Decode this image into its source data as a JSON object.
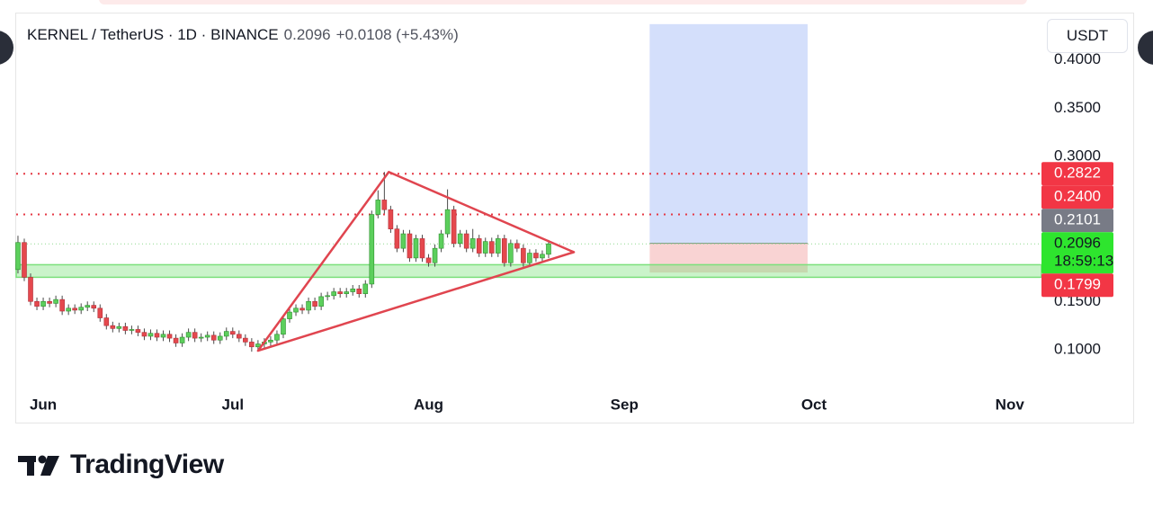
{
  "header": {
    "symbol": "KERNEL / TetherUS · 1D · BINANCE",
    "last": "0.2096",
    "change": "+0.0108 (+5.43%)"
  },
  "currency": "USDT",
  "brand": "TradingView",
  "chart_data": {
    "type": "candlestick",
    "xlim": [
      -0.28,
      162.02
    ],
    "xticks": [
      {
        "value": 4,
        "label": "Jun"
      },
      {
        "value": 34,
        "label": "Jul"
      },
      {
        "value": 65,
        "label": "Aug"
      },
      {
        "value": 96,
        "label": "Sep"
      },
      {
        "value": 126,
        "label": "Oct"
      },
      {
        "value": 157,
        "label": "Nov"
      }
    ],
    "ylim": [
      0.0572,
      0.448
    ],
    "yticks": [
      {
        "value": 0.1,
        "label": "0.1000"
      },
      {
        "value": 0.15,
        "label": "0.1500"
      },
      {
        "value": 0.3,
        "label": "0.3000"
      },
      {
        "value": 0.35,
        "label": "0.3500"
      },
      {
        "value": 0.4,
        "label": "0.4000"
      }
    ],
    "up_color": "#5ccf5c",
    "down_color": "#e5484d",
    "wick_color": "#4a4a4a",
    "candles": {
      "open": [
        0.183,
        0.211,
        0.175,
        0.15,
        0.145,
        0.15,
        0.148,
        0.152,
        0.14,
        0.143,
        0.141,
        0.144,
        0.146,
        0.143,
        0.133,
        0.125,
        0.122,
        0.124,
        0.12,
        0.121,
        0.118,
        0.114,
        0.117,
        0.113,
        0.116,
        0.112,
        0.107,
        0.113,
        0.118,
        0.112,
        0.113,
        0.115,
        0.11,
        0.114,
        0.119,
        0.116,
        0.112,
        0.108,
        0.103,
        0.106,
        0.108,
        0.11,
        0.116,
        0.132,
        0.139,
        0.143,
        0.141,
        0.15,
        0.145,
        0.155,
        0.156,
        0.16,
        0.158,
        0.16,
        0.163,
        0.158,
        0.168,
        0.24,
        0.255,
        0.245,
        0.225,
        0.205,
        0.22,
        0.195,
        0.215,
        0.195,
        0.19,
        0.205,
        0.22,
        0.245,
        0.21,
        0.22,
        0.205,
        0.215,
        0.2,
        0.212,
        0.2,
        0.215,
        0.19,
        0.21,
        0.205,
        0.19,
        0.2,
        0.195,
        0.1988
      ],
      "high": [
        0.218,
        0.215,
        0.179,
        0.154,
        0.154,
        0.154,
        0.156,
        0.156,
        0.147,
        0.147,
        0.148,
        0.15,
        0.15,
        0.147,
        0.137,
        0.129,
        0.128,
        0.128,
        0.125,
        0.125,
        0.122,
        0.121,
        0.121,
        0.12,
        0.12,
        0.116,
        0.117,
        0.122,
        0.122,
        0.117,
        0.119,
        0.119,
        0.118,
        0.123,
        0.123,
        0.12,
        0.116,
        0.112,
        0.11,
        0.112,
        0.114,
        0.12,
        0.136,
        0.143,
        0.147,
        0.147,
        0.154,
        0.154,
        0.159,
        0.16,
        0.164,
        0.164,
        0.164,
        0.167,
        0.167,
        0.172,
        0.244,
        0.265,
        0.284,
        0.249,
        0.229,
        0.224,
        0.224,
        0.219,
        0.219,
        0.199,
        0.209,
        0.224,
        0.266,
        0.249,
        0.224,
        0.224,
        0.225,
        0.219,
        0.216,
        0.216,
        0.219,
        0.219,
        0.214,
        0.214,
        0.209,
        0.204,
        0.204,
        0.2028,
        0.2136
      ],
      "low": [
        0.179,
        0.171,
        0.146,
        0.141,
        0.141,
        0.144,
        0.144,
        0.136,
        0.136,
        0.137,
        0.137,
        0.14,
        0.139,
        0.129,
        0.121,
        0.118,
        0.118,
        0.116,
        0.116,
        0.114,
        0.11,
        0.11,
        0.109,
        0.109,
        0.108,
        0.103,
        0.103,
        0.109,
        0.108,
        0.108,
        0.109,
        0.106,
        0.106,
        0.11,
        0.112,
        0.108,
        0.104,
        0.098,
        0.099,
        0.102,
        0.104,
        0.106,
        0.112,
        0.128,
        0.135,
        0.137,
        0.137,
        0.141,
        0.141,
        0.151,
        0.152,
        0.154,
        0.154,
        0.156,
        0.154,
        0.154,
        0.164,
        0.236,
        0.241,
        0.221,
        0.201,
        0.201,
        0.191,
        0.191,
        0.191,
        0.186,
        0.186,
        0.201,
        0.216,
        0.206,
        0.206,
        0.201,
        0.201,
        0.196,
        0.196,
        0.196,
        0.196,
        0.186,
        0.186,
        0.201,
        0.186,
        0.186,
        0.191,
        0.191,
        0.1948
      ],
      "close": [
        0.211,
        0.175,
        0.15,
        0.145,
        0.15,
        0.148,
        0.152,
        0.14,
        0.143,
        0.141,
        0.144,
        0.146,
        0.143,
        0.133,
        0.125,
        0.122,
        0.124,
        0.12,
        0.121,
        0.118,
        0.114,
        0.117,
        0.113,
        0.116,
        0.112,
        0.107,
        0.113,
        0.118,
        0.112,
        0.113,
        0.115,
        0.11,
        0.114,
        0.119,
        0.116,
        0.112,
        0.108,
        0.103,
        0.106,
        0.108,
        0.11,
        0.116,
        0.132,
        0.139,
        0.143,
        0.141,
        0.15,
        0.145,
        0.155,
        0.156,
        0.16,
        0.158,
        0.16,
        0.163,
        0.158,
        0.168,
        0.24,
        0.255,
        0.245,
        0.225,
        0.205,
        0.22,
        0.195,
        0.215,
        0.195,
        0.19,
        0.205,
        0.22,
        0.245,
        0.21,
        0.22,
        0.205,
        0.215,
        0.2,
        0.212,
        0.2,
        0.215,
        0.19,
        0.21,
        0.205,
        0.19,
        0.2,
        0.195,
        0.1988,
        0.2096
      ]
    },
    "levels": [
      {
        "value": 0.2822,
        "color": "#e53945"
      },
      {
        "value": 0.24,
        "color": "#e53945"
      },
      {
        "value": 0.2096,
        "color": "#8fd98f"
      }
    ],
    "zone": {
      "range": [
        0.175,
        0.188
      ],
      "color": "#7be07b"
    },
    "triangle": {
      "x": [
        58.7,
        38,
        88
      ],
      "y": [
        0.284,
        0.099,
        0.201
      ],
      "color": "#e0454f"
    },
    "position": {
      "x": [
        100,
        125
      ],
      "entry": 0.2101,
      "stop": 0.1799,
      "target": 0.437
    },
    "price_labels": [
      {
        "value": 0.2822,
        "label": "0.2822",
        "color": "#f23645"
      },
      {
        "value": 0.24,
        "label": "0.2400",
        "color": "#f23645"
      },
      {
        "value": 0.2101,
        "label": "0.2101",
        "color": "#787b86"
      },
      {
        "value": 0.2096,
        "label": "0.2096",
        "color": "#2ee52e"
      },
      {
        "value": 0.1799,
        "label": "0.1799",
        "color": "#f23645"
      }
    ],
    "countdown": "18:59:13"
  }
}
